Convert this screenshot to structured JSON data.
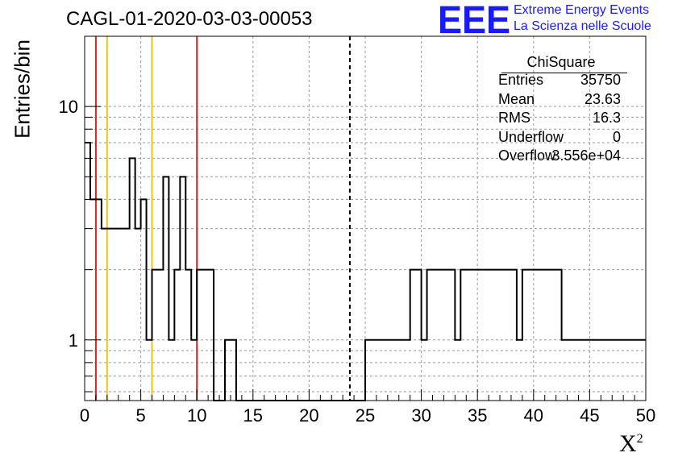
{
  "title": "CAGL-01-2020-03-03-00053",
  "logo": {
    "acronym": "EEE",
    "line1": "Extreme Energy Events",
    "line2": "La Scienza nelle Scuole",
    "color": "#1a1aff"
  },
  "stats": {
    "name": "ChiSquare",
    "rows": [
      {
        "key": "Entries",
        "value": "35750"
      },
      {
        "key": "Mean",
        "value": "23.63"
      },
      {
        "key": "RMS",
        "value": "16.3"
      },
      {
        "key": "Underflow",
        "value": "0"
      },
      {
        "key": "Overflow",
        "value": "3.556e+04"
      }
    ]
  },
  "chart_data": {
    "type": "histogram",
    "title": "CAGL-01-2020-03-03-00053",
    "xlabel": "X²",
    "ylabel": "Entries/bin",
    "xlim": [
      0,
      50
    ],
    "ylim": [
      0.55,
      20
    ],
    "yscale": "log",
    "grid": true,
    "bin_width": 0.5,
    "xticks": [
      0,
      5,
      10,
      15,
      20,
      25,
      30,
      35,
      40,
      45,
      50
    ],
    "yticks": [
      {
        "value": 1,
        "label": "1"
      },
      {
        "value": 10,
        "label": "10"
      }
    ],
    "counts": [
      7,
      4,
      4,
      3,
      3,
      3,
      3,
      3,
      6,
      3,
      4,
      1,
      2,
      2,
      5,
      1,
      2,
      5,
      2,
      1,
      2,
      2,
      2,
      0,
      0,
      1,
      1,
      0,
      0,
      0,
      0,
      0,
      0,
      0,
      0,
      0,
      0,
      0,
      0,
      0,
      0,
      0,
      0,
      0,
      0,
      0,
      0,
      0,
      0,
      0,
      1,
      1,
      1,
      1,
      1,
      1,
      1,
      1,
      2,
      2,
      1,
      2,
      2,
      2,
      2,
      2,
      1,
      2,
      2,
      2,
      2,
      2,
      2,
      2,
      2,
      2,
      2,
      1,
      2,
      2,
      2,
      2,
      2,
      2,
      2,
      1,
      1,
      1,
      1,
      1,
      1,
      1,
      1,
      1,
      1,
      1,
      1,
      1,
      1,
      1
    ],
    "vlines": [
      {
        "x": 1,
        "color": "#dd2222"
      },
      {
        "x": 2,
        "color": "#f2c21a"
      },
      {
        "x": 6,
        "color": "#f2c21a"
      },
      {
        "x": 10,
        "color": "#dd2222"
      },
      {
        "x": 23.63,
        "color": "#000000",
        "style": "dashed"
      }
    ],
    "line_color": "#000000"
  }
}
